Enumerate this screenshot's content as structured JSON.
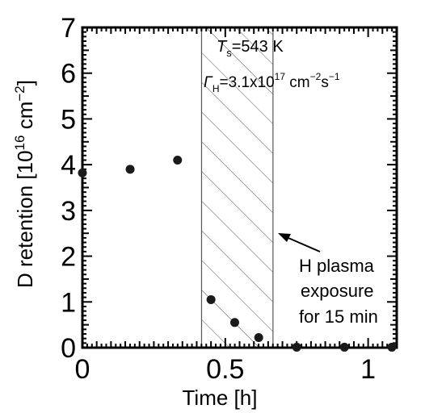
{
  "chart_data": {
    "type": "scatter",
    "xlabel": "Time [h]",
    "ylabel": "D retention [10",
    "ylabel_sup": "16",
    "ylabel_unit": " cm",
    "ylabel_unit_sup": "−2",
    "ylabel_close": "]",
    "xlim": [
      0,
      1.1
    ],
    "ylim": [
      0,
      7
    ],
    "x_ticks_major": [
      0,
      0.5,
      1
    ],
    "x_tick_labels": [
      "0",
      "0.5",
      "1"
    ],
    "y_ticks_major": [
      0,
      1,
      2,
      3,
      4,
      5,
      6,
      7
    ],
    "y_tick_labels": [
      "0",
      "1",
      "2",
      "3",
      "4",
      "5",
      "6",
      "7"
    ],
    "series": [
      {
        "x": [
          0,
          0.167,
          0.333,
          0.45,
          0.533,
          0.617,
          0.75,
          0.917,
          1.083
        ],
        "y": [
          3.82,
          3.9,
          4.1,
          1.05,
          0.55,
          0.22,
          0.01,
          0.01,
          0.01
        ]
      }
    ],
    "shaded_region": {
      "x": [
        0.417,
        0.667
      ],
      "pattern": "diagonal hatch"
    },
    "annotations": {
      "ts_symbol": "T",
      "ts_sub": "s",
      "ts_value": "=543 K",
      "gamma_symbol": "Γ",
      "gamma_sub": "H",
      "gamma_value": "=3.1x10",
      "gamma_exp": "17",
      "gamma_unit": " cm",
      "gamma_unit_exp1": "−2",
      "gamma_unit2": "s",
      "gamma_unit_exp2": "−1",
      "exposure_line1": "H plasma",
      "exposure_line2": "exposure",
      "exposure_line3": "for 15 min"
    },
    "grid": false,
    "legend": "none"
  }
}
